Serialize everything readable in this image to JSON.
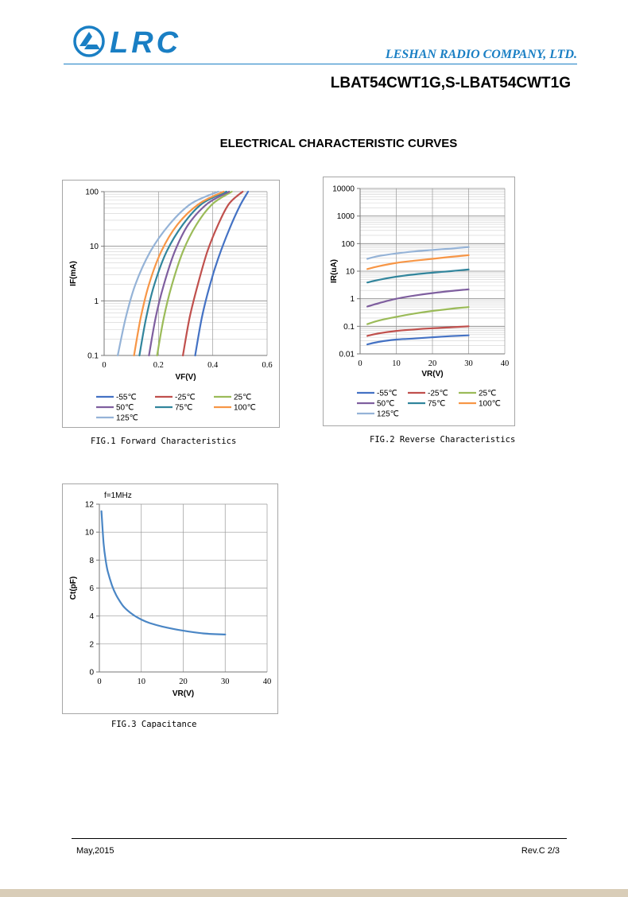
{
  "header": {
    "logo_text": "LRC",
    "company": "LESHAN RADIO COMPANY, LTD.",
    "part_number": "LBAT54CWT1G,S-LBAT54CWT1G",
    "brand_color": "#1a7fc4"
  },
  "section_title": "ELECTRICAL CHARACTERISTIC CURVES",
  "footer": {
    "date": "May,2015",
    "revision": "Rev.C 2/3"
  },
  "chart_data": [
    {
      "id": "fig1",
      "type": "line",
      "caption": "FIG.1 Forward Characteristics",
      "xlabel": "VF(V)",
      "ylabel": "IF(mA)",
      "xlim": [
        0,
        0.6
      ],
      "ylim": [
        0.1,
        100
      ],
      "yscale": "log",
      "xticks": [
        "0",
        "0.2",
        "0.4",
        "0.6"
      ],
      "yticks": [
        "0.1",
        "1",
        "10",
        "100"
      ],
      "grid": true,
      "legend_position": "bottom",
      "series": [
        {
          "name": "-55℃",
          "color": "#4472c4",
          "x": [
            0.335,
            0.36,
            0.39,
            0.42,
            0.46,
            0.5,
            0.53
          ],
          "y": [
            0.1,
            0.5,
            2,
            6,
            20,
            55,
            100
          ]
        },
        {
          "name": "-25℃",
          "color": "#c0504d",
          "x": [
            0.29,
            0.315,
            0.345,
            0.38,
            0.42,
            0.46,
            0.51
          ],
          "y": [
            0.1,
            0.5,
            2,
            8,
            25,
            60,
            100
          ]
        },
        {
          "name": "25℃",
          "color": "#9bbb59",
          "x": [
            0.195,
            0.22,
            0.25,
            0.29,
            0.34,
            0.4,
            0.47
          ],
          "y": [
            0.1,
            0.5,
            2,
            8,
            25,
            60,
            100
          ]
        },
        {
          "name": "50℃",
          "color": "#7f5f9f",
          "x": [
            0.165,
            0.19,
            0.22,
            0.26,
            0.31,
            0.38,
            0.46
          ],
          "y": [
            0.1,
            0.5,
            2,
            8,
            25,
            60,
            100
          ]
        },
        {
          "name": "75℃",
          "color": "#31859c",
          "x": [
            0.13,
            0.155,
            0.185,
            0.23,
            0.29,
            0.36,
            0.45
          ],
          "y": [
            0.1,
            0.5,
            2,
            8,
            25,
            60,
            100
          ]
        },
        {
          "name": "100℃",
          "color": "#f79646",
          "x": [
            0.11,
            0.135,
            0.165,
            0.21,
            0.27,
            0.35,
            0.44
          ],
          "y": [
            0.1,
            0.5,
            2,
            8,
            25,
            60,
            100
          ]
        },
        {
          "name": "125℃",
          "color": "#95b3d7",
          "x": [
            0.05,
            0.08,
            0.115,
            0.17,
            0.24,
            0.32,
            0.42
          ],
          "y": [
            0.1,
            0.5,
            2,
            8,
            25,
            60,
            100
          ]
        }
      ]
    },
    {
      "id": "fig2",
      "type": "line",
      "caption": "FIG.2 Reverse Characteristics",
      "xlabel": "VR(V)",
      "ylabel": "IR(uA)",
      "xlim": [
        0,
        40
      ],
      "ylim": [
        0.01,
        10000
      ],
      "yscale": "log",
      "xticks": [
        "0",
        "10",
        "20",
        "30",
        "40"
      ],
      "yticks": [
        "0.01",
        "0.1",
        "1",
        "10",
        "100",
        "1000",
        "10000"
      ],
      "grid": true,
      "legend_position": "bottom",
      "series": [
        {
          "name": "-55℃",
          "color": "#4472c4",
          "x": [
            2,
            5,
            10,
            15,
            20,
            25,
            30
          ],
          "y": [
            0.022,
            0.027,
            0.033,
            0.036,
            0.04,
            0.044,
            0.047
          ]
        },
        {
          "name": "-25℃",
          "color": "#c0504d",
          "x": [
            2,
            5,
            10,
            15,
            20,
            25,
            30
          ],
          "y": [
            0.045,
            0.055,
            0.068,
            0.077,
            0.085,
            0.092,
            0.1
          ]
        },
        {
          "name": "25℃",
          "color": "#9bbb59",
          "x": [
            2,
            5,
            10,
            15,
            20,
            25,
            30
          ],
          "y": [
            0.12,
            0.16,
            0.22,
            0.29,
            0.36,
            0.43,
            0.5
          ]
        },
        {
          "name": "50℃",
          "color": "#7f5f9f",
          "x": [
            2,
            5,
            10,
            15,
            20,
            25,
            30
          ],
          "y": [
            0.52,
            0.68,
            1.0,
            1.3,
            1.6,
            1.9,
            2.2
          ]
        },
        {
          "name": "75℃",
          "color": "#31859c",
          "x": [
            2,
            5,
            10,
            15,
            20,
            25,
            30
          ],
          "y": [
            3.9,
            4.8,
            6.3,
            7.6,
            8.8,
            10,
            11.5
          ]
        },
        {
          "name": "100℃",
          "color": "#f79646",
          "x": [
            2,
            5,
            10,
            15,
            20,
            25,
            30
          ],
          "y": [
            12,
            15,
            20,
            24,
            28,
            33,
            38
          ]
        },
        {
          "name": "125℃",
          "color": "#95b3d7",
          "x": [
            2,
            5,
            10,
            15,
            20,
            25,
            30
          ],
          "y": [
            28,
            35,
            44,
            52,
            59,
            66,
            75
          ]
        }
      ]
    },
    {
      "id": "fig3",
      "type": "line",
      "caption": "FIG.3 Capacitance",
      "annotation": "f=1MHz",
      "xlabel": "VR(V)",
      "ylabel": "Ct(pF)",
      "xlim": [
        0,
        40
      ],
      "ylim": [
        0,
        12
      ],
      "yscale": "linear",
      "xticks": [
        "0",
        "10",
        "20",
        "30",
        "40"
      ],
      "yticks": [
        "0",
        "2",
        "4",
        "6",
        "8",
        "10",
        "12"
      ],
      "grid": true,
      "series": [
        {
          "color": "#4a86c5",
          "x": [
            0.5,
            1,
            1.5,
            2,
            3,
            4,
            5,
            6,
            8,
            10,
            12,
            15,
            20,
            25,
            30
          ],
          "y": [
            11.5,
            9.2,
            8.0,
            7.2,
            6.2,
            5.5,
            5.0,
            4.6,
            4.1,
            3.75,
            3.5,
            3.25,
            2.95,
            2.75,
            2.68
          ]
        }
      ]
    }
  ]
}
